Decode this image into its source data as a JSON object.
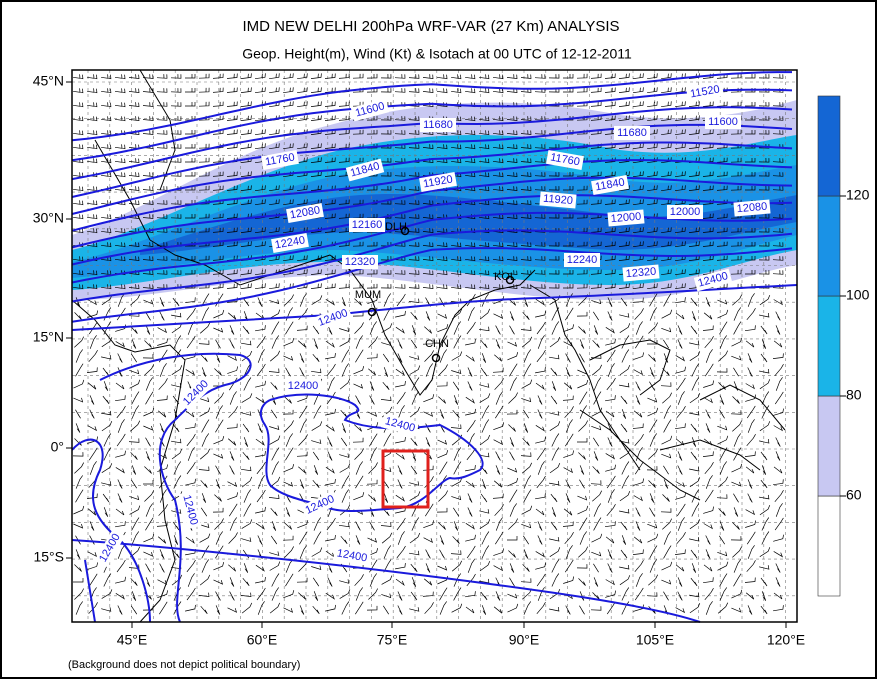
{
  "title": "IMD NEW DELHI 200hPa WRF-VAR (27 Km) ANALYSIS",
  "subtitle": "Geop. Height(m), Wind (Kt) & Isotach  at 00 UTC of 12-12-2011",
  "lat_labels": [
    "45°N",
    "30°N",
    "15°N",
    "0°",
    "15°S"
  ],
  "lon_labels": [
    "45°E",
    "60°E",
    "75°E",
    "90°E",
    "105°E",
    "120°E"
  ],
  "colorbar": {
    "ticks": [
      60,
      80,
      100,
      120
    ],
    "colors": [
      "#ffffff",
      "#c8c8f2",
      "#1ab4e8",
      "#1a92e6",
      "#1466d4"
    ]
  },
  "contour_labels": [
    "11520",
    "11600",
    "11680",
    "11680",
    "11600",
    "11760",
    "11840",
    "11920",
    "11760",
    "11840",
    "11920",
    "12080",
    "12160",
    "12000",
    "12000",
    "12080",
    "12240",
    "12320",
    "12240",
    "12320",
    "12400",
    "12400",
    "12400",
    "12400",
    "12400",
    "12400",
    "12400",
    "12400",
    "12400"
  ],
  "stations": [
    "DLH",
    "KOL",
    "MUM",
    "CHN"
  ],
  "footnote": "(Background does not depict political boundary)"
}
